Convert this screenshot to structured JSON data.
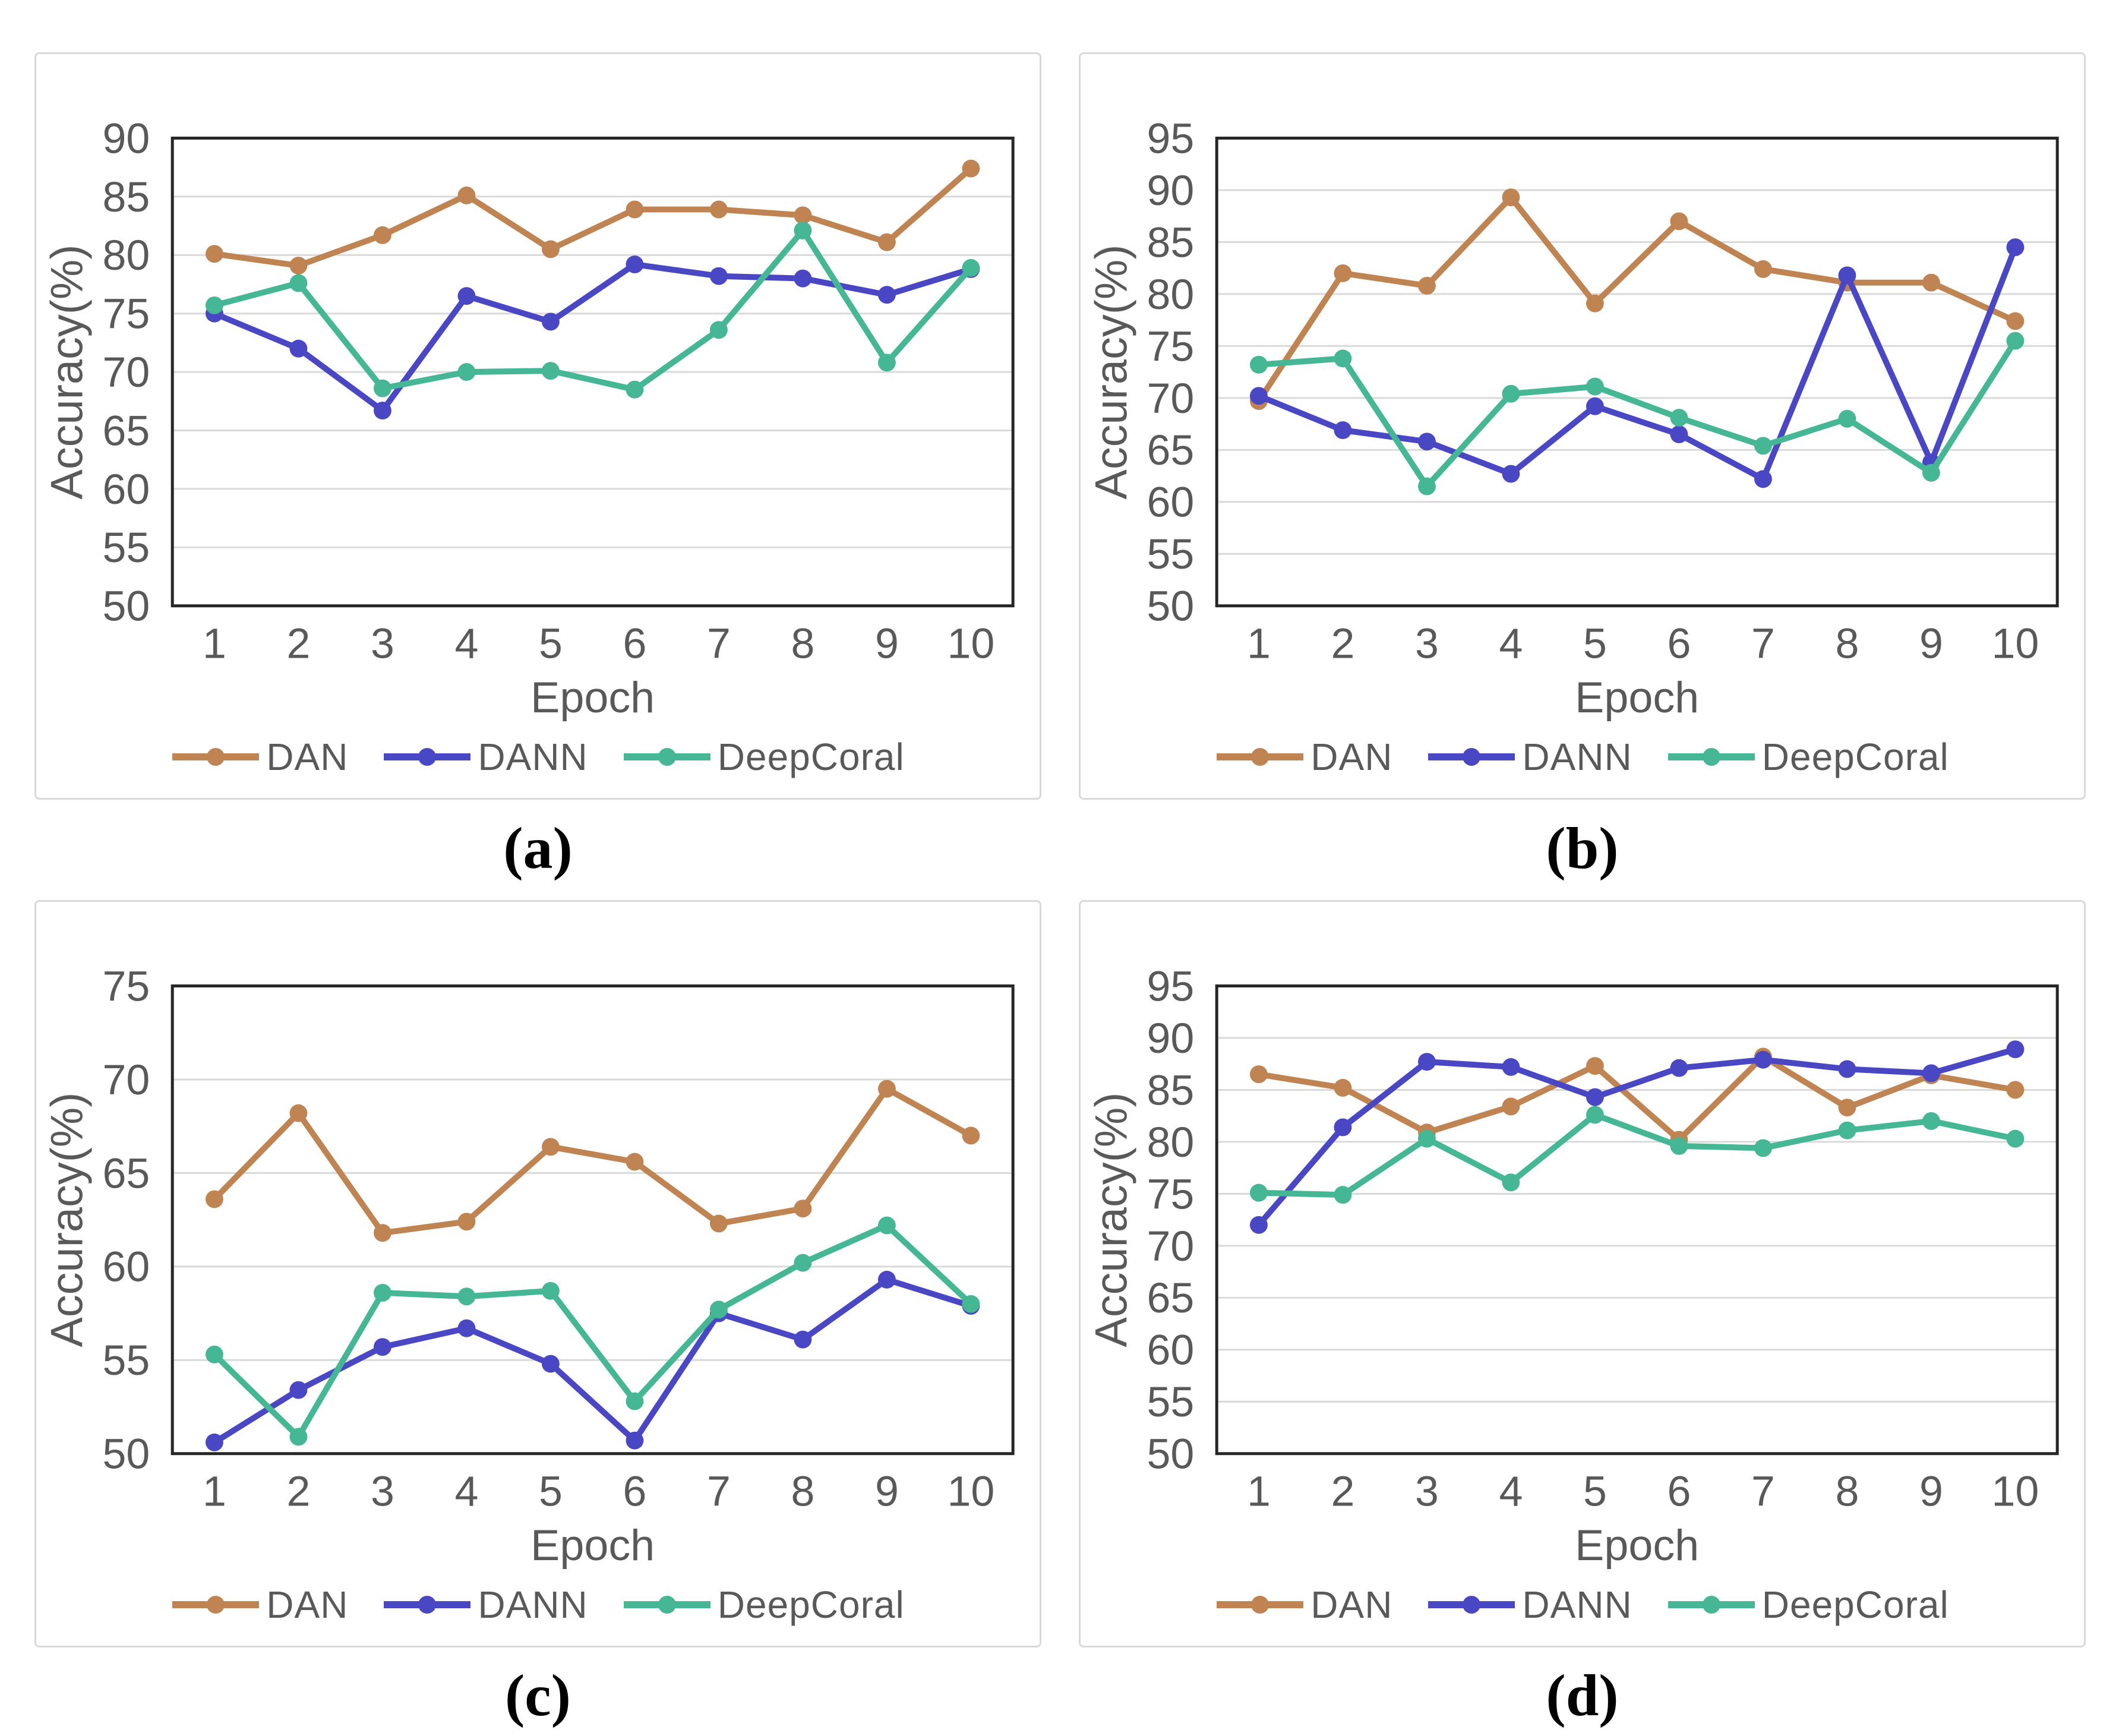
{
  "style": {
    "text_color": "#595959",
    "grid_color": "#d9d9d9",
    "plot_border_color": "#262626",
    "panel_border_color": "#d9d9d9",
    "series_colors": {
      "DAN": "#bf8451",
      "DANN": "#4a47c4",
      "DeepCoral": "#45b795"
    }
  },
  "chart_data": [
    {
      "id": "a",
      "caption": "(a)",
      "type": "line",
      "xlabel": "Epoch",
      "ylabel": "Accuracy(%)",
      "categories": [
        1,
        2,
        3,
        4,
        5,
        6,
        7,
        8,
        9,
        10
      ],
      "ylim": [
        50,
        90
      ],
      "ytick_step": 5,
      "grid": true,
      "legend_position": "bottom",
      "series": [
        {
          "name": "DAN",
          "color": "#bf8451",
          "values": [
            80.1,
            79.1,
            81.7,
            85.1,
            80.5,
            83.9,
            83.9,
            83.4,
            81.1,
            87.4
          ]
        },
        {
          "name": "DANN",
          "color": "#4a47c4",
          "values": [
            75.0,
            72.0,
            66.7,
            76.5,
            74.3,
            79.2,
            78.2,
            78.0,
            76.6,
            78.8
          ]
        },
        {
          "name": "DeepCoral",
          "color": "#45b795",
          "values": [
            75.7,
            77.6,
            68.6,
            70.0,
            70.1,
            68.5,
            73.6,
            82.1,
            70.8,
            78.9
          ]
        }
      ]
    },
    {
      "id": "b",
      "caption": "(b)",
      "type": "line",
      "xlabel": "Epoch",
      "ylabel": "Accuracy(%)",
      "categories": [
        1,
        2,
        3,
        4,
        5,
        6,
        7,
        8,
        9,
        10
      ],
      "ylim": [
        50,
        95
      ],
      "ytick_step": 5,
      "grid": true,
      "legend_position": "bottom",
      "series": [
        {
          "name": "DAN",
          "color": "#bf8451",
          "values": [
            69.7,
            82.0,
            80.8,
            89.3,
            79.1,
            87.0,
            82.4,
            81.1,
            81.1,
            77.4
          ]
        },
        {
          "name": "DANN",
          "color": "#4a47c4",
          "values": [
            70.2,
            66.9,
            65.8,
            62.7,
            69.2,
            66.5,
            62.2,
            81.8,
            63.8,
            84.5
          ]
        },
        {
          "name": "DeepCoral",
          "color": "#45b795",
          "values": [
            73.2,
            73.8,
            61.5,
            70.4,
            71.1,
            68.1,
            65.4,
            68.0,
            62.8,
            75.5
          ]
        }
      ]
    },
    {
      "id": "c",
      "caption": "(c)",
      "type": "line",
      "xlabel": "Epoch",
      "ylabel": "Accuracy(%)",
      "categories": [
        1,
        2,
        3,
        4,
        5,
        6,
        7,
        8,
        9,
        10
      ],
      "ylim": [
        50,
        75
      ],
      "ytick_step": 5,
      "grid": true,
      "legend_position": "bottom",
      "series": [
        {
          "name": "DAN",
          "color": "#bf8451",
          "values": [
            63.6,
            68.2,
            61.8,
            62.4,
            66.4,
            65.6,
            62.3,
            63.1,
            69.5,
            67.0
          ]
        },
        {
          "name": "DANN",
          "color": "#4a47c4",
          "values": [
            50.6,
            53.4,
            55.7,
            56.7,
            54.8,
            50.7,
            57.5,
            56.1,
            59.3,
            57.9
          ]
        },
        {
          "name": "DeepCoral",
          "color": "#45b795",
          "values": [
            55.3,
            50.9,
            58.6,
            58.4,
            58.7,
            52.8,
            57.7,
            60.2,
            62.2,
            58.0
          ]
        }
      ]
    },
    {
      "id": "d",
      "caption": "(d)",
      "type": "line",
      "xlabel": "Epoch",
      "ylabel": "Accuracy(%)",
      "categories": [
        1,
        2,
        3,
        4,
        5,
        6,
        7,
        8,
        9,
        10
      ],
      "ylim": [
        50,
        95
      ],
      "ytick_step": 5,
      "grid": true,
      "legend_position": "bottom",
      "series": [
        {
          "name": "DAN",
          "color": "#bf8451",
          "values": [
            86.5,
            85.2,
            80.9,
            83.4,
            87.3,
            80.2,
            88.2,
            83.3,
            86.4,
            85.0
          ]
        },
        {
          "name": "DANN",
          "color": "#4a47c4",
          "values": [
            72.0,
            81.4,
            87.7,
            87.2,
            84.3,
            87.1,
            87.9,
            87.0,
            86.6,
            88.9
          ]
        },
        {
          "name": "DeepCoral",
          "color": "#45b795",
          "values": [
            75.1,
            74.9,
            80.3,
            76.1,
            82.6,
            79.6,
            79.4,
            81.1,
            82.0,
            80.3
          ]
        }
      ]
    }
  ]
}
